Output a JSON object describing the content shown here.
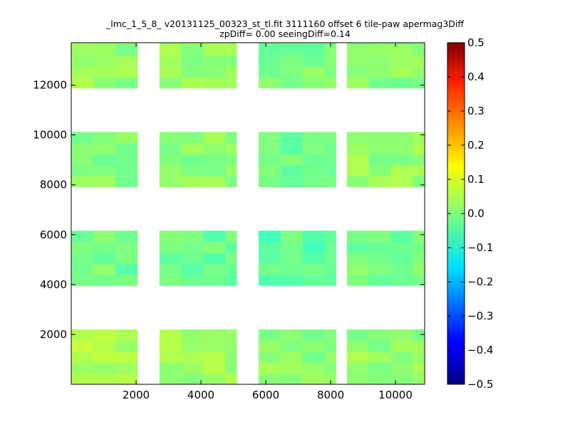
{
  "chart_data": {
    "type": "heatmap",
    "title": "_lmc_1_5_8_ v20131125_00323_st_tl.fit 3111160 offset 6 tile-paw apermag3Diff",
    "subtitle": "zpDiff= 0.00 seeingDiff=0.14",
    "xlabel": "",
    "ylabel": "",
    "xlim": [
      0,
      10900
    ],
    "ylim": [
      0,
      13700
    ],
    "x_ticks": [
      "2000",
      "4000",
      "6000",
      "8000",
      "10000"
    ],
    "x_tick_values": [
      2000,
      4000,
      6000,
      8000,
      10000
    ],
    "y_ticks": [
      "2000",
      "4000",
      "6000",
      "8000",
      "10000",
      "12000"
    ],
    "y_tick_values": [
      2000,
      4000,
      6000,
      8000,
      10000,
      12000
    ],
    "colorbar": {
      "colormap": "jet",
      "min": -0.5,
      "max": 0.5,
      "ticks": [
        "0.5",
        "0.4",
        "0.3",
        "0.2",
        "0.1",
        "0.0",
        "−0.1",
        "−0.2",
        "−0.3",
        "−0.4",
        "−0.5"
      ],
      "tick_values": [
        0.5,
        0.4,
        0.3,
        0.2,
        0.1,
        0.0,
        -0.1,
        -0.2,
        -0.3,
        -0.4,
        -0.5
      ]
    },
    "cell_size": [
      680,
      440
    ],
    "blocks": [
      {
        "x_range": [
          0,
          2040
        ],
        "y_range": [
          0,
          2200
        ],
        "typical_value": 0.04
      },
      {
        "x_range": [
          2720,
          5100
        ],
        "y_range": [
          0,
          2200
        ],
        "typical_value": 0.03
      },
      {
        "x_range": [
          5780,
          8160
        ],
        "y_range": [
          0,
          2200
        ],
        "typical_value": 0.01
      },
      {
        "x_range": [
          8500,
          10900
        ],
        "y_range": [
          0,
          2200
        ],
        "typical_value": 0.02
      },
      {
        "x_range": [
          0,
          2040
        ],
        "y_range": [
          3960,
          6160
        ],
        "typical_value": -0.01
      },
      {
        "x_range": [
          2720,
          5100
        ],
        "y_range": [
          3960,
          6160
        ],
        "typical_value": -0.02
      },
      {
        "x_range": [
          5780,
          8160
        ],
        "y_range": [
          3960,
          6160
        ],
        "typical_value": -0.03
      },
      {
        "x_range": [
          8500,
          10900
        ],
        "y_range": [
          3960,
          6160
        ],
        "typical_value": -0.01
      },
      {
        "x_range": [
          0,
          2040
        ],
        "y_range": [
          7920,
          10120
        ],
        "typical_value": 0.01
      },
      {
        "x_range": [
          2720,
          5100
        ],
        "y_range": [
          7920,
          10120
        ],
        "typical_value": 0.01
      },
      {
        "x_range": [
          5780,
          8160
        ],
        "y_range": [
          7920,
          10120
        ],
        "typical_value": -0.01
      },
      {
        "x_range": [
          8500,
          10900
        ],
        "y_range": [
          7920,
          10120
        ],
        "typical_value": 0.02
      },
      {
        "x_range": [
          0,
          2040
        ],
        "y_range": [
          11880,
          13700
        ],
        "typical_value": 0.02
      },
      {
        "x_range": [
          2720,
          5100
        ],
        "y_range": [
          11880,
          13700
        ],
        "typical_value": 0.02
      },
      {
        "x_range": [
          5780,
          8160
        ],
        "y_range": [
          11880,
          13700
        ],
        "typical_value": 0.0
      },
      {
        "x_range": [
          8500,
          10900
        ],
        "y_range": [
          11880,
          13700
        ],
        "typical_value": 0.01
      }
    ]
  }
}
